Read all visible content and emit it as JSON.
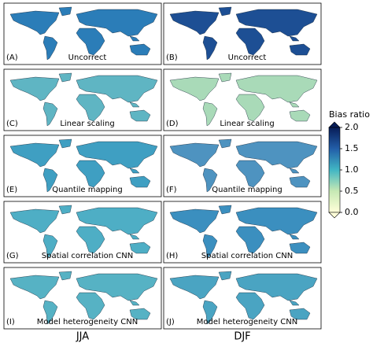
{
  "panels": [
    {
      "letter": "(A)",
      "method": "Uncorrect"
    },
    {
      "letter": "(B)",
      "method": "Uncorrect"
    },
    {
      "letter": "(C)",
      "method": "Linear scaling"
    },
    {
      "letter": "(D)",
      "method": "Linear scaling"
    },
    {
      "letter": "(E)",
      "method": "Quantile mapping"
    },
    {
      "letter": "(F)",
      "method": "Quantile mapping"
    },
    {
      "letter": "(G)",
      "method": "Spatial correlation CNN"
    },
    {
      "letter": "(H)",
      "method": "Spatial correlation CNN"
    },
    {
      "letter": "(I)",
      "method": "Model heterogeneity CNN"
    },
    {
      "letter": "(J)",
      "method": "Model heterogeneity CNN"
    }
  ],
  "columns": [
    "JJA",
    "DJF"
  ],
  "colorbar": {
    "label": "Bias ratio",
    "lim": [
      0,
      2
    ],
    "ticks": [
      {
        "value": 0,
        "label": "0.0"
      },
      {
        "value": 0.5,
        "label": "0.5"
      },
      {
        "value": 1,
        "label": "1.0"
      },
      {
        "value": 1.5,
        "label": "1.5"
      },
      {
        "value": 2,
        "label": "2.0"
      }
    ]
  }
}
